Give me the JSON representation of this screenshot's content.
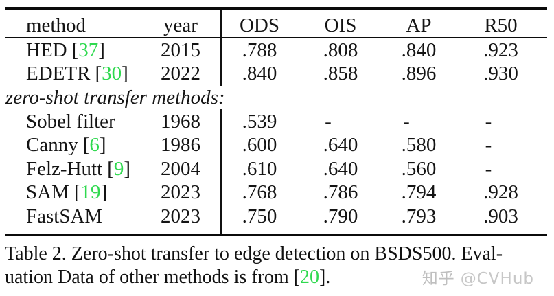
{
  "figure": {
    "columns": [
      "method",
      "year",
      "ODS",
      "OIS",
      "AP",
      "R50"
    ],
    "rows": [
      {
        "method": "HED",
        "cite_l": "[",
        "cite": "37",
        "cite_r": "]",
        "year": "2015",
        "ods": ".788",
        "ois": ".808",
        "ap": ".840",
        "r50": ".923"
      },
      {
        "method": "EDETR",
        "cite_l": "[",
        "cite": "30",
        "cite_r": "]",
        "year": "2022",
        "ods": ".840",
        "ois": ".858",
        "ap": ".896",
        "r50": ".930"
      },
      {
        "method": "Sobel filter",
        "year": "1968",
        "ods": ".539",
        "ois": "-",
        "ap": "-",
        "r50": "-"
      },
      {
        "method": "Canny",
        "cite_l": "[",
        "cite": "6",
        "cite_r": "]",
        "year": "1986",
        "ods": ".600",
        "ois": ".640",
        "ap": ".580",
        "r50": "-"
      },
      {
        "method": "Felz-Hutt",
        "cite_l": "[",
        "cite": "9",
        "cite_r": "]",
        "year": "2004",
        "ods": ".610",
        "ois": ".640",
        "ap": ".560",
        "r50": "-"
      },
      {
        "method": "SAM",
        "cite_l": "[",
        "cite": "19",
        "cite_r": "]",
        "year": "2023",
        "ods": ".768",
        "ois": ".786",
        "ap": ".794",
        "r50": ".928"
      },
      {
        "method": "FastSAM",
        "year": "2023",
        "ods": ".750",
        "ois": ".790",
        "ap": ".793",
        "r50": ".903"
      }
    ],
    "section_label": "zero-shot transfer methods:"
  },
  "caption": {
    "line1": "Table 2. Zero-shot transfer to edge detection on BSDS500. Eval-",
    "line2_prefix": "uation Data of other methods is from [",
    "line2_cite": "20",
    "line2_suffix": "]."
  },
  "watermark": {
    "brand": "知乎",
    "handle": "@CVHub"
  },
  "colors": {
    "citation_green": "#2fd94f",
    "watermark_gray": "#c7c7c7",
    "text": "#141414"
  }
}
